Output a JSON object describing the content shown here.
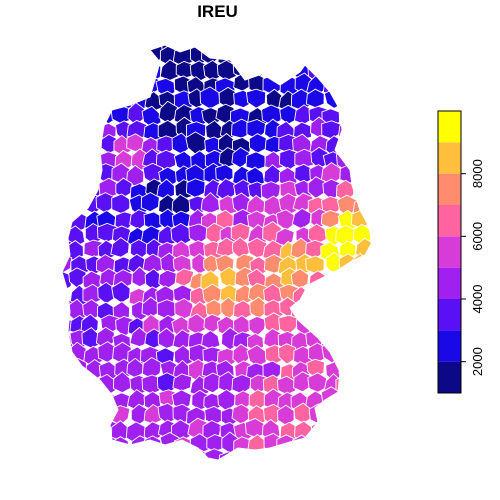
{
  "title": "IREU",
  "legend": {
    "breaks": [
      1000,
      2000,
      3000,
      4000,
      5000,
      6000,
      7000,
      8000,
      9000,
      10000
    ],
    "tick_labels": [
      "2000",
      "4000",
      "6000",
      "8000"
    ],
    "tick_values": [
      2000,
      4000,
      6000,
      8000
    ],
    "colors": [
      "#0D0887",
      "#1A08E6",
      "#5A10F5",
      "#A020F0",
      "#D83CD8",
      "#FF64A0",
      "#FF8C6E",
      "#FFBE3C",
      "#FFFF00"
    ]
  },
  "map": {
    "region": "Germany (districts)",
    "border_color": "#FFFFFF"
  }
}
